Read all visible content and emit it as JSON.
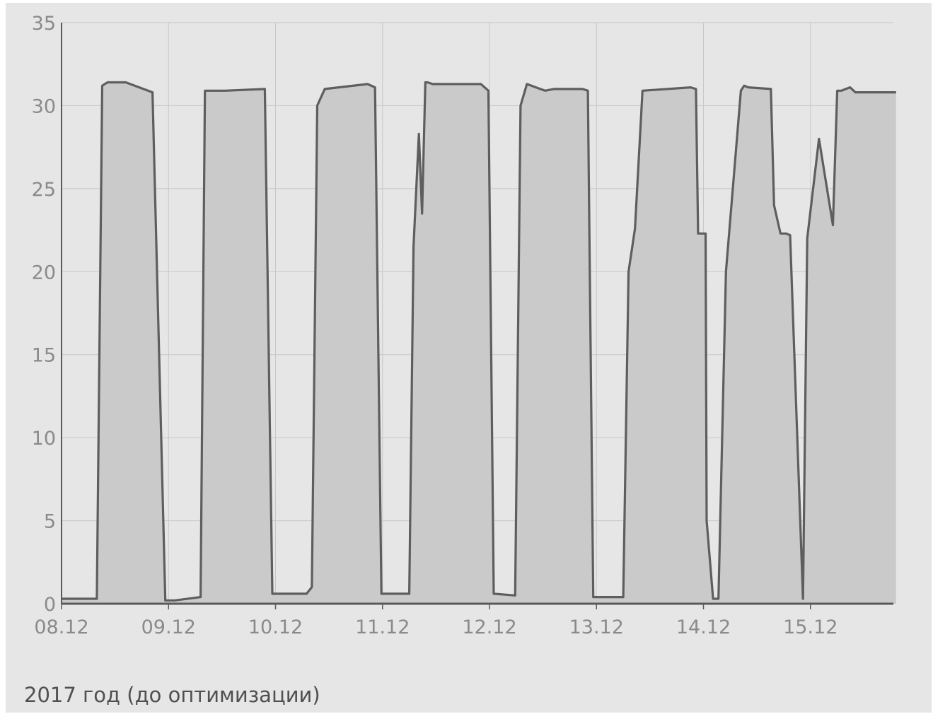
{
  "caption": "2017 год (до оптимизации)",
  "colors": {
    "background": "#e6e6e6",
    "grid": "#c7c7c7",
    "area_fill": "#cacaca",
    "line": "#5e5e5e",
    "axis": "#5a5a5a",
    "tick_text": "#8a8a8a"
  },
  "chart_data": {
    "type": "area",
    "title": "",
    "xlabel": "",
    "ylabel": "",
    "ylim": [
      0,
      35
    ],
    "xlim": [
      0,
      7.8
    ],
    "grid": true,
    "y_ticks": [
      0,
      5,
      10,
      15,
      20,
      25,
      30,
      35
    ],
    "x_ticks": [
      {
        "value": 0,
        "label": "08.12"
      },
      {
        "value": 1,
        "label": "09.12"
      },
      {
        "value": 2,
        "label": "10.12"
      },
      {
        "value": 3,
        "label": "11.12"
      },
      {
        "value": 4,
        "label": "12.12"
      },
      {
        "value": 5,
        "label": "13.12"
      },
      {
        "value": 6,
        "label": "14.12"
      },
      {
        "value": 7,
        "label": "15.12"
      }
    ],
    "series": [
      {
        "name": "",
        "x": [
          0,
          0.33,
          0.38,
          0.43,
          0.6,
          0.85,
          0.97,
          1.06,
          1.3,
          1.34,
          1.44,
          1.53,
          1.9,
          1.97,
          2.02,
          2.29,
          2.34,
          2.39,
          2.46,
          2.86,
          2.93,
          2.99,
          3.25,
          3.29,
          3.34,
          3.37,
          3.4,
          3.42,
          3.47,
          3.92,
          3.99,
          4.04,
          4.24,
          4.29,
          4.35,
          4.52,
          4.6,
          4.87,
          4.92,
          4.97,
          5.25,
          5.3,
          5.36,
          5.43,
          5.88,
          5.93,
          5.95,
          6.02,
          6.03,
          6.09,
          6.14,
          6.21,
          6.35,
          6.38,
          6.42,
          6.63,
          6.66,
          6.72,
          6.77,
          6.81,
          6.93,
          6.97,
          7.08,
          7.21,
          7.25,
          7.29,
          7.33,
          7.37,
          7.42,
          7.6,
          7.8
        ],
        "values": [
          0.3,
          0.3,
          31.2,
          31.4,
          31.4,
          30.8,
          0.2,
          0.2,
          0.4,
          30.9,
          30.9,
          30.9,
          31.0,
          0.6,
          0.6,
          0.6,
          1.0,
          30.0,
          31.0,
          31.3,
          31.1,
          0.6,
          0.6,
          21.5,
          28.3,
          23.5,
          31.4,
          31.4,
          31.3,
          31.3,
          30.9,
          0.6,
          0.5,
          30.0,
          31.3,
          30.9,
          31.0,
          31.0,
          30.9,
          0.4,
          0.4,
          20.0,
          22.6,
          30.9,
          31.1,
          31.0,
          22.3,
          22.3,
          5.0,
          0.3,
          0.3,
          20.0,
          30.9,
          31.2,
          31.1,
          31.0,
          24.0,
          22.3,
          22.3,
          22.2,
          0.3,
          22.0,
          28.0,
          22.8,
          30.9,
          30.9,
          31.0,
          31.1,
          30.8,
          30.8,
          30.8
        ]
      }
    ]
  }
}
